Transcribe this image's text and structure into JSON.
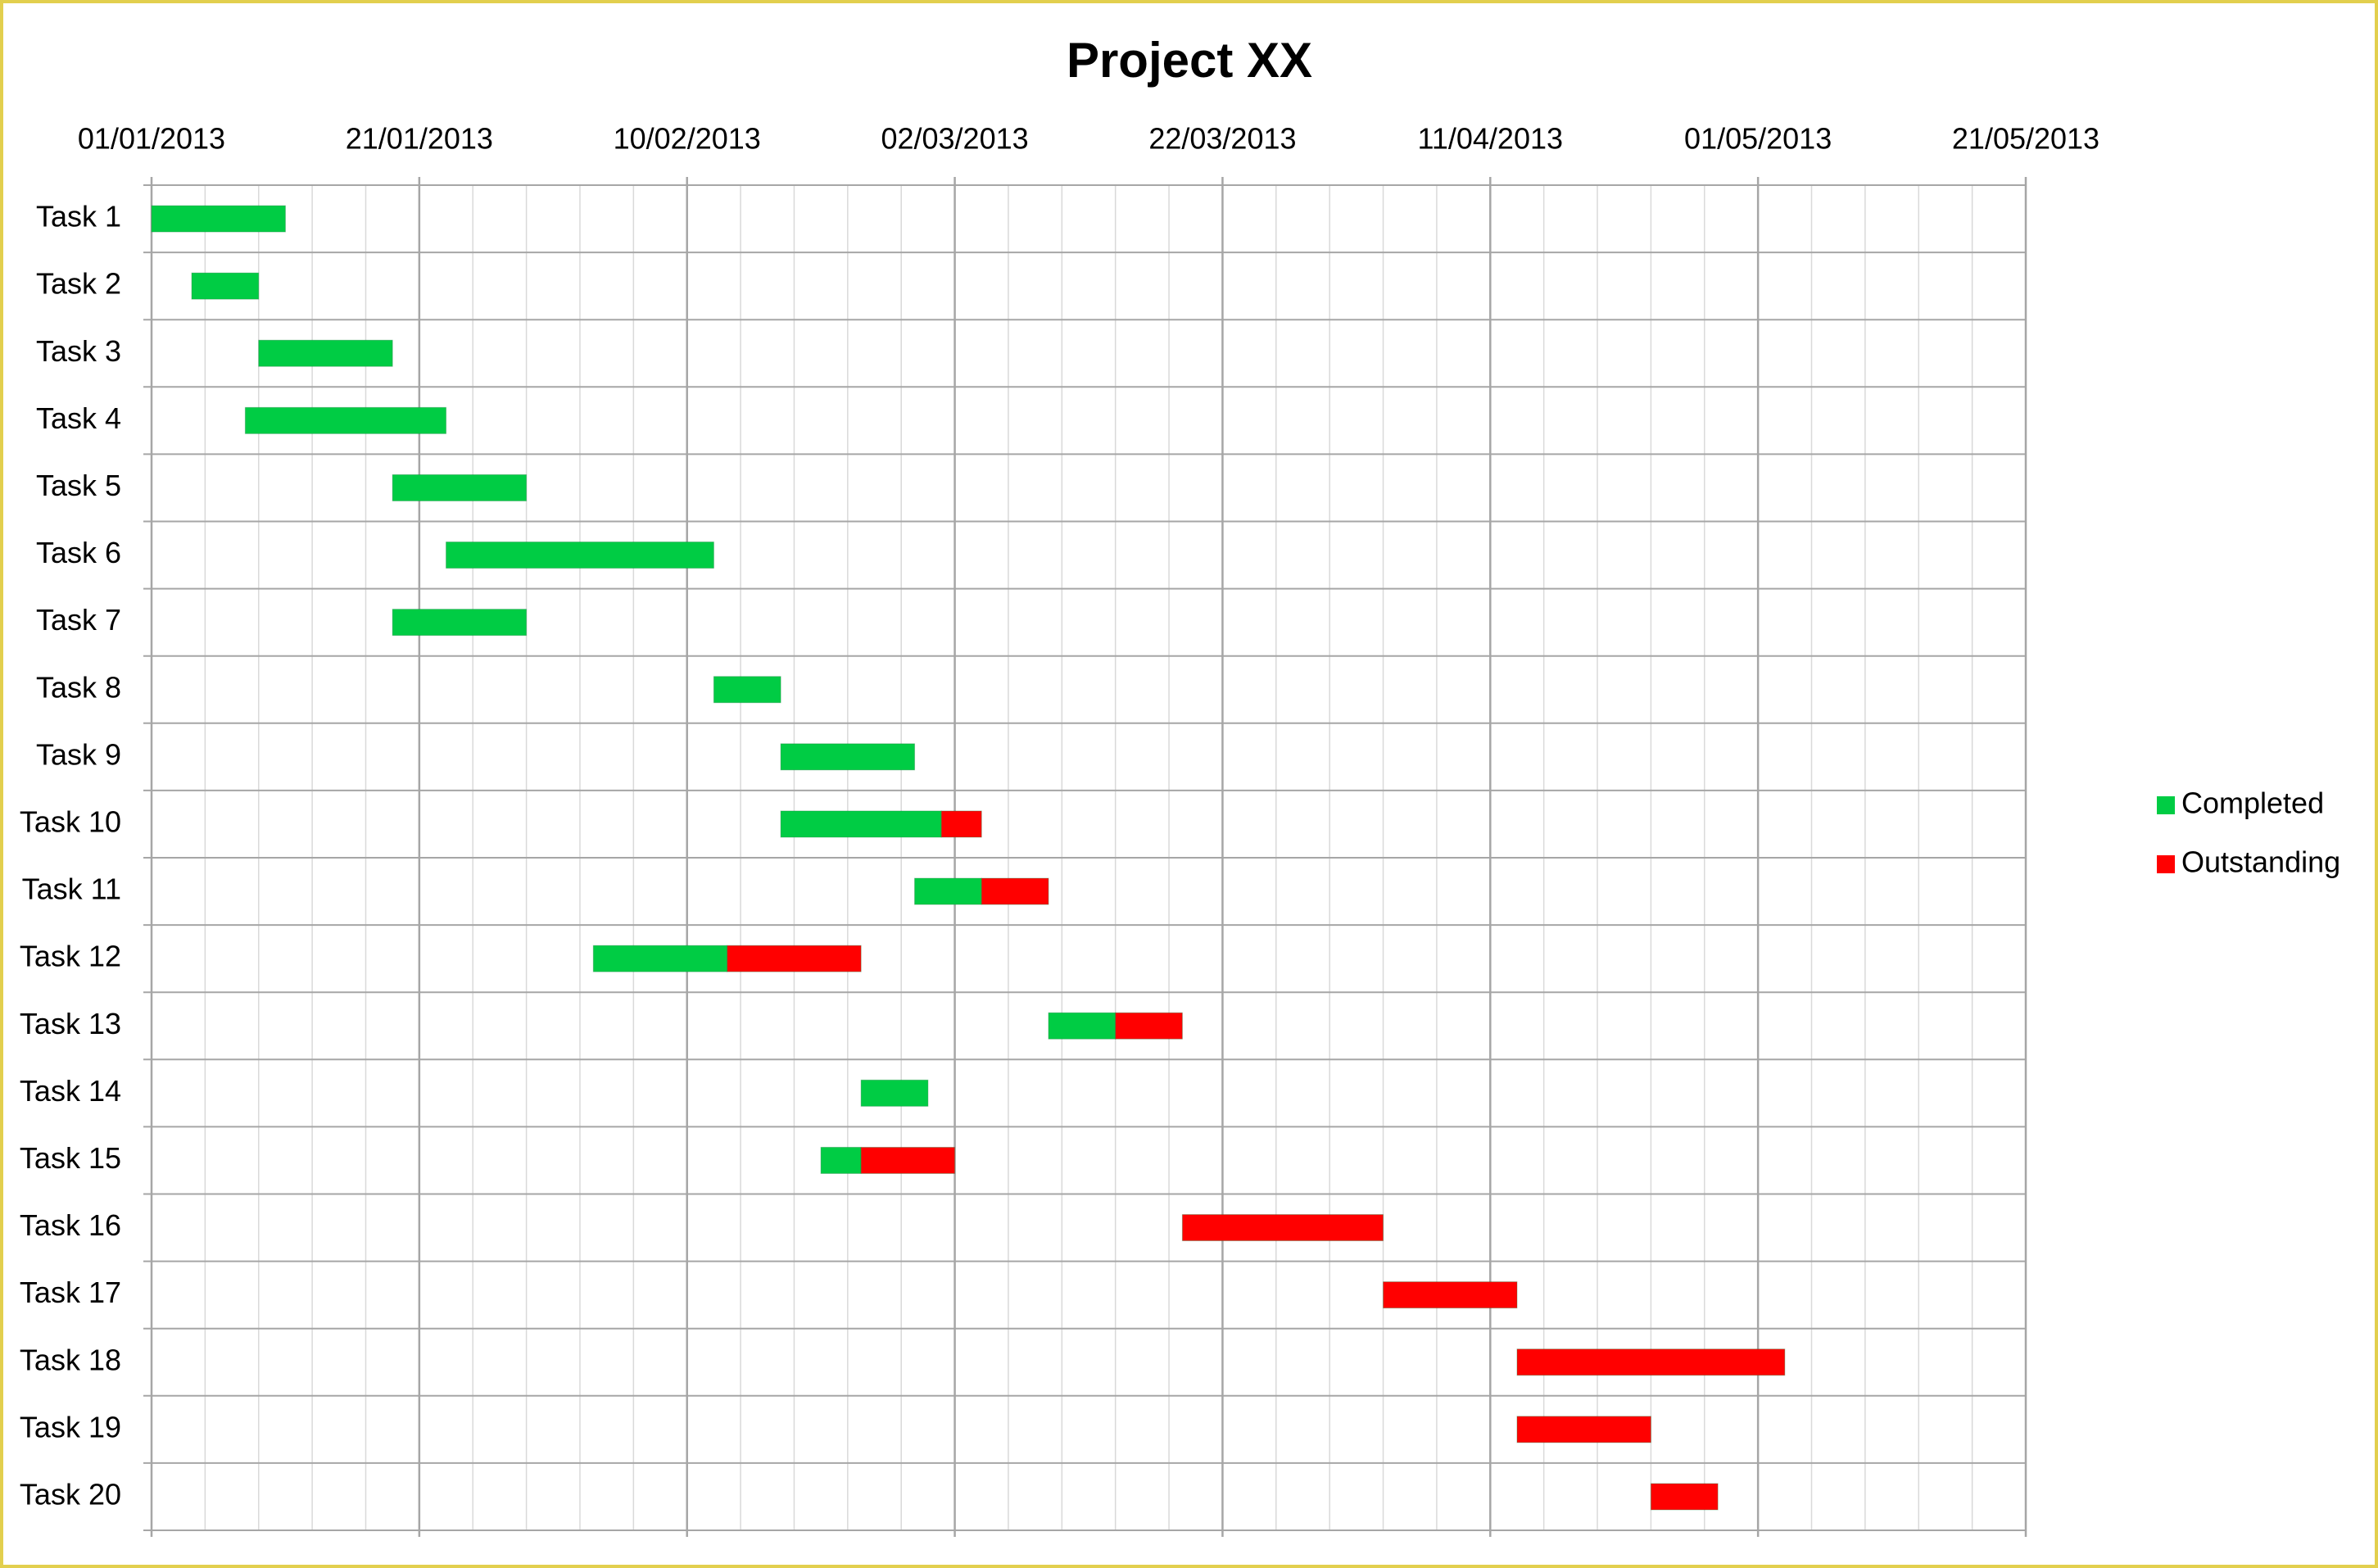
{
  "chart_data": {
    "type": "gantt",
    "title": "Project XX",
    "categories": [
      "Task 1",
      "Task 2",
      "Task 3",
      "Task 4",
      "Task 5",
      "Task 6",
      "Task 7",
      "Task 8",
      "Task 9",
      "Task 10",
      "Task 11",
      "Task 12",
      "Task 13",
      "Task 14",
      "Task 15",
      "Task 16",
      "Task 17",
      "Task 18",
      "Task 19",
      "Task 20"
    ],
    "start": [
      "2013-01-01",
      "2013-01-04",
      "2013-01-09",
      "2013-01-08",
      "2013-01-19",
      "2013-01-23",
      "2013-01-19",
      "2013-02-12",
      "2013-02-17",
      "2013-02-17",
      "2013-02-27",
      "2013-02-03",
      "2013-03-09",
      "2013-02-23",
      "2013-02-20",
      "2013-03-19",
      "2013-04-03",
      "2013-04-13",
      "2013-04-13",
      "2013-04-23"
    ],
    "series": [
      {
        "name": "Completed",
        "color": "#00cc44",
        "values": [
          10,
          5,
          10,
          15,
          10,
          20,
          10,
          5,
          10,
          12,
          5,
          10,
          5,
          5,
          3,
          0,
          0,
          0,
          0,
          0
        ]
      },
      {
        "name": "Outstanding",
        "color": "#ff0000",
        "values": [
          0,
          0,
          0,
          0,
          0,
          0,
          0,
          0,
          0,
          3,
          5,
          10,
          5,
          0,
          7,
          15,
          10,
          20,
          10,
          5
        ]
      }
    ],
    "xlim": [
      "2013-01-01",
      "2013-05-21"
    ],
    "xticks": [
      {
        "value": "2013-01-01",
        "label": "01/01/2013"
      },
      {
        "value": "2013-01-21",
        "label": "21/01/2013"
      },
      {
        "value": "2013-02-10",
        "label": "10/02/2013"
      },
      {
        "value": "2013-03-02",
        "label": "02/03/2013"
      },
      {
        "value": "2013-03-22",
        "label": "22/03/2013"
      },
      {
        "value": "2013-04-11",
        "label": "11/04/2013"
      },
      {
        "value": "2013-05-01",
        "label": "01/05/2013"
      },
      {
        "value": "2013-05-21",
        "label": "21/05/2013"
      }
    ],
    "grid": true,
    "legend": "right"
  }
}
